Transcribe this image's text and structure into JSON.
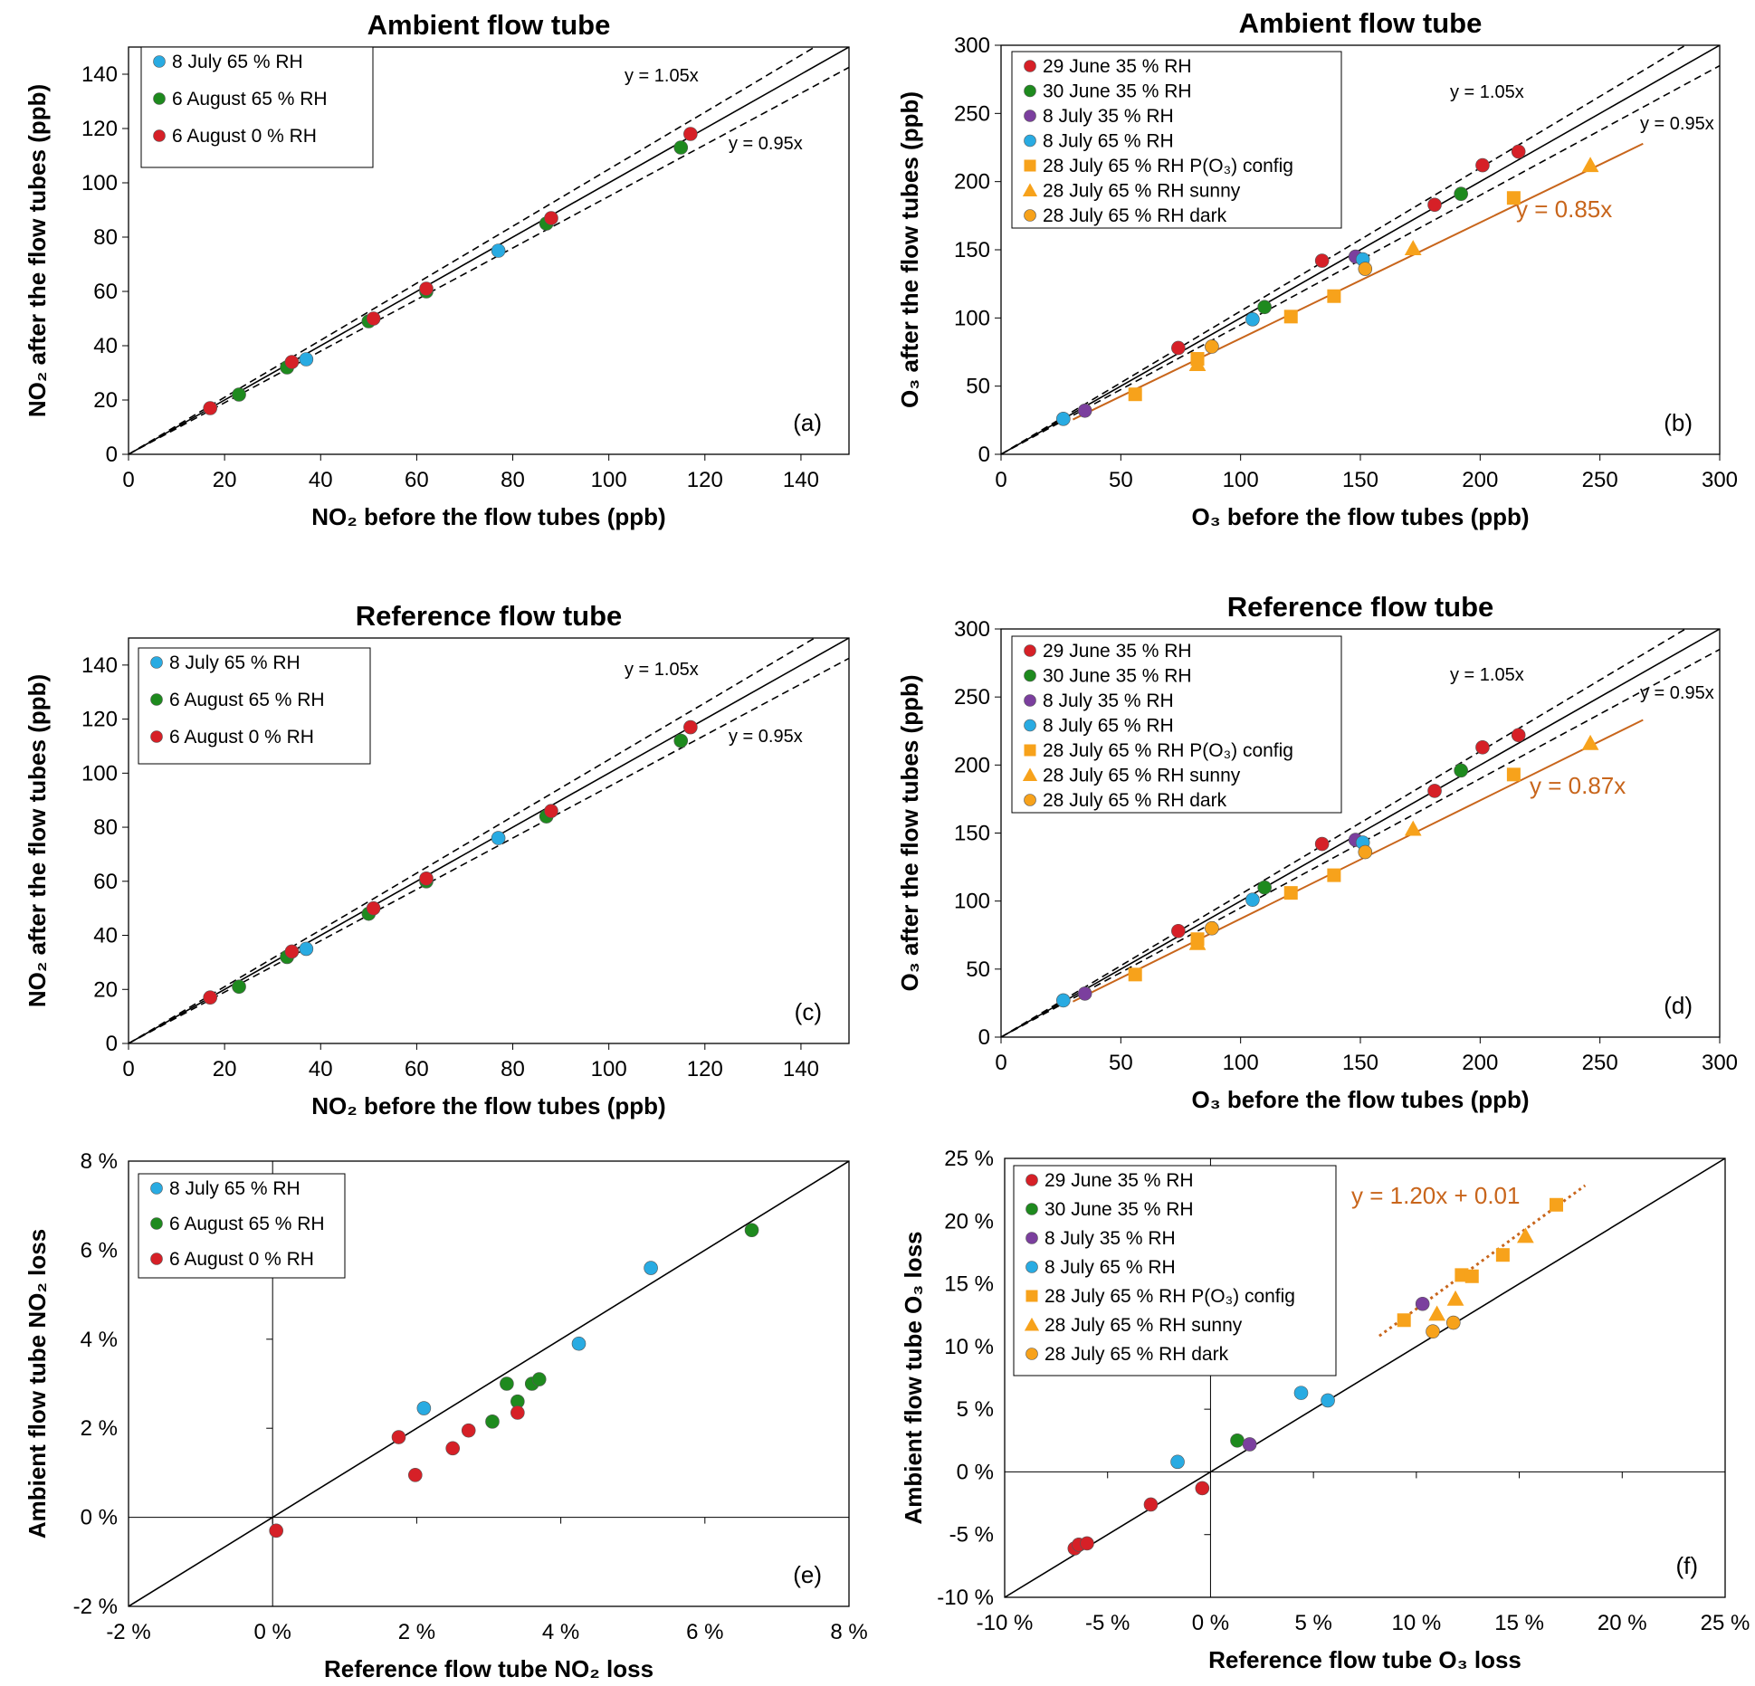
{
  "figure": {
    "panels": [
      "a",
      "b",
      "c",
      "d",
      "e",
      "f"
    ]
  },
  "chart_data": [
    {
      "id": "a",
      "type": "scatter",
      "title": "Ambient flow tube",
      "xlabel": "NO₂ before the flow tubes (ppb)",
      "ylabel": "NO₂ after the flow tubes (ppb)",
      "xlim": [
        0,
        150
      ],
      "ylim": [
        0,
        150
      ],
      "xticks": [
        0,
        20,
        40,
        60,
        80,
        100,
        120,
        140
      ],
      "yticks": [
        0,
        20,
        40,
        60,
        80,
        100,
        120,
        140
      ],
      "tick_format": "num",
      "panel_label": "(a)",
      "legend_position": "top-left",
      "lines": [
        {
          "kind": "ref",
          "slope": 1.0,
          "style": "solid",
          "color": "#000000"
        },
        {
          "kind": "ref",
          "slope": 1.05,
          "style": "dashed",
          "color": "#000000",
          "label": "y = 1.05x"
        },
        {
          "kind": "ref",
          "slope": 0.95,
          "style": "dashed",
          "color": "#000000",
          "label": "y = 0.95x"
        }
      ],
      "series": [
        {
          "name": "8 July 65 % RH",
          "color": "#29abe2",
          "marker": "circle",
          "points": [
            [
              37,
              35
            ],
            [
              77,
              75
            ]
          ]
        },
        {
          "name": "6 August 65 % RH",
          "color": "#1e8a1e",
          "marker": "circle",
          "points": [
            [
              23,
              22
            ],
            [
              33,
              32
            ],
            [
              50,
              49
            ],
            [
              62,
              60
            ],
            [
              87,
              85
            ],
            [
              115,
              113
            ]
          ]
        },
        {
          "name": "6 August 0 % RH",
          "color": "#d62027",
          "marker": "circle",
          "points": [
            [
              17,
              17
            ],
            [
              34,
              34
            ],
            [
              51,
              50
            ],
            [
              62,
              61
            ],
            [
              88,
              87
            ],
            [
              117,
              118
            ]
          ]
        }
      ]
    },
    {
      "id": "b",
      "type": "scatter",
      "title": "Ambient flow tube",
      "xlabel": "O₃ before the flow tubes (ppb)",
      "ylabel": "O₃ after the flow tubes (ppb)",
      "xlim": [
        0,
        300
      ],
      "ylim": [
        0,
        300
      ],
      "xticks": [
        0,
        50,
        100,
        150,
        200,
        250,
        300
      ],
      "yticks": [
        0,
        50,
        100,
        150,
        200,
        250,
        300
      ],
      "tick_format": "num",
      "panel_label": "(b)",
      "legend_position": "top-left",
      "lines": [
        {
          "kind": "ref",
          "slope": 1.0,
          "style": "solid",
          "color": "#000000"
        },
        {
          "kind": "ref",
          "slope": 1.05,
          "style": "dashed",
          "color": "#000000",
          "label": "y = 1.05x"
        },
        {
          "kind": "ref",
          "slope": 0.95,
          "style": "dashed",
          "color": "#000000",
          "label": "y = 0.95x"
        },
        {
          "kind": "fit",
          "slope": 0.85,
          "intercept": 0,
          "x_range": [
            30,
            268
          ],
          "style": "solid",
          "color": "#c8651b",
          "label": "y = 0.85x"
        }
      ],
      "series": [
        {
          "name": "29 June 35 % RH",
          "color": "#d62027",
          "marker": "circle",
          "points": [
            [
              74,
              78
            ],
            [
              134,
              142
            ],
            [
              181,
              183
            ],
            [
              201,
              212
            ],
            [
              216,
              222
            ]
          ]
        },
        {
          "name": "30 June 35 % RH",
          "color": "#1e8a1e",
          "marker": "circle",
          "points": [
            [
              110,
              108
            ],
            [
              192,
              191
            ]
          ]
        },
        {
          "name": "8 July 35 % RH",
          "color": "#7b3f9e",
          "marker": "circle",
          "points": [
            [
              35,
              32
            ],
            [
              148,
              145
            ]
          ]
        },
        {
          "name": "8 July 65 % RH",
          "color": "#29abe2",
          "marker": "circle",
          "points": [
            [
              26,
              26
            ],
            [
              105,
              99
            ],
            [
              151,
              143
            ]
          ]
        },
        {
          "name": "28 July 65 % RH P(O₃) config",
          "color": "#f7a21b",
          "marker": "square",
          "points": [
            [
              56,
              44
            ],
            [
              82,
              70
            ],
            [
              121,
              101
            ],
            [
              139,
              116
            ],
            [
              214,
              188
            ]
          ]
        },
        {
          "name": "28 July 65 % RH sunny",
          "color": "#f7a21b",
          "marker": "triangle",
          "points": [
            [
              82,
              66
            ],
            [
              172,
              151
            ],
            [
              246,
              212
            ]
          ]
        },
        {
          "name": "28 July 65 % RH dark",
          "color": "#f7a21b",
          "marker": "circle",
          "points": [
            [
              88,
              79
            ],
            [
              152,
              136
            ]
          ]
        }
      ]
    },
    {
      "id": "c",
      "type": "scatter",
      "title": "Reference flow tube",
      "xlabel": "NO₂ before the flow tubes (ppb)",
      "ylabel": "NO₂ after the flow tubes (ppb)",
      "xlim": [
        0,
        150
      ],
      "ylim": [
        0,
        150
      ],
      "xticks": [
        0,
        20,
        40,
        60,
        80,
        100,
        120,
        140
      ],
      "yticks": [
        0,
        20,
        40,
        60,
        80,
        100,
        120,
        140
      ],
      "tick_format": "num",
      "panel_label": "(c)",
      "legend_position": "top-left",
      "lines": [
        {
          "kind": "ref",
          "slope": 1.0,
          "style": "solid",
          "color": "#000000"
        },
        {
          "kind": "ref",
          "slope": 1.05,
          "style": "dashed",
          "color": "#000000",
          "label": "y = 1.05x"
        },
        {
          "kind": "ref",
          "slope": 0.95,
          "style": "dashed",
          "color": "#000000",
          "label": "y = 0.95x"
        }
      ],
      "series": [
        {
          "name": "8 July 65 % RH",
          "color": "#29abe2",
          "marker": "circle",
          "points": [
            [
              37,
              35
            ],
            [
              77,
              76
            ]
          ]
        },
        {
          "name": "6 August 65 % RH",
          "color": "#1e8a1e",
          "marker": "circle",
          "points": [
            [
              23,
              21
            ],
            [
              33,
              32
            ],
            [
              50,
              48
            ],
            [
              62,
              60
            ],
            [
              87,
              84
            ],
            [
              115,
              112
            ]
          ]
        },
        {
          "name": "6 August 0 % RH",
          "color": "#d62027",
          "marker": "circle",
          "points": [
            [
              17,
              17
            ],
            [
              34,
              34
            ],
            [
              51,
              50
            ],
            [
              62,
              61
            ],
            [
              88,
              86
            ],
            [
              117,
              117
            ]
          ]
        }
      ]
    },
    {
      "id": "d",
      "type": "scatter",
      "title": "Reference flow tube",
      "xlabel": "O₃ before the flow tubes (ppb)",
      "ylabel": "O₃ after the flow tubes (ppb)",
      "xlim": [
        0,
        300
      ],
      "ylim": [
        0,
        300
      ],
      "xticks": [
        0,
        50,
        100,
        150,
        200,
        250,
        300
      ],
      "yticks": [
        0,
        50,
        100,
        150,
        200,
        250,
        300
      ],
      "tick_format": "num",
      "panel_label": "(d)",
      "legend_position": "top-left",
      "lines": [
        {
          "kind": "ref",
          "slope": 1.0,
          "style": "solid",
          "color": "#000000"
        },
        {
          "kind": "ref",
          "slope": 1.05,
          "style": "dashed",
          "color": "#000000",
          "label": "y = 1.05x"
        },
        {
          "kind": "ref",
          "slope": 0.95,
          "style": "dashed",
          "color": "#000000",
          "label": "y = 0.95x"
        },
        {
          "kind": "fit",
          "slope": 0.87,
          "intercept": 0,
          "x_range": [
            30,
            268
          ],
          "style": "solid",
          "color": "#c8651b",
          "label": "y = 0.87x"
        }
      ],
      "series": [
        {
          "name": "29 June 35 % RH",
          "color": "#d62027",
          "marker": "circle",
          "points": [
            [
              74,
              78
            ],
            [
              134,
              142
            ],
            [
              181,
              181
            ],
            [
              201,
              213
            ],
            [
              216,
              222
            ]
          ]
        },
        {
          "name": "30 June 35 % RH",
          "color": "#1e8a1e",
          "marker": "circle",
          "points": [
            [
              110,
              110
            ],
            [
              192,
              196
            ]
          ]
        },
        {
          "name": "8 July 35 % RH",
          "color": "#7b3f9e",
          "marker": "circle",
          "points": [
            [
              35,
              32
            ],
            [
              148,
              145
            ]
          ]
        },
        {
          "name": "8 July 65 % RH",
          "color": "#29abe2",
          "marker": "circle",
          "points": [
            [
              26,
              27
            ],
            [
              105,
              101
            ],
            [
              151,
              143
            ]
          ]
        },
        {
          "name": "28 July 65 % RH P(O₃) config",
          "color": "#f7a21b",
          "marker": "square",
          "points": [
            [
              56,
              46
            ],
            [
              82,
              72
            ],
            [
              121,
              106
            ],
            [
              139,
              119
            ],
            [
              214,
              193
            ]
          ]
        },
        {
          "name": "28 July 65 % RH sunny",
          "color": "#f7a21b",
          "marker": "triangle",
          "points": [
            [
              82,
              69
            ],
            [
              172,
              153
            ],
            [
              246,
              216
            ]
          ]
        },
        {
          "name": "28 July 65 % RH dark",
          "color": "#f7a21b",
          "marker": "circle",
          "points": [
            [
              88,
              80
            ],
            [
              152,
              136
            ]
          ]
        }
      ]
    },
    {
      "id": "e",
      "type": "scatter",
      "title": "",
      "xlabel": "Reference flow tube NO₂ loss",
      "ylabel": "Ambient flow tube NO₂ loss",
      "xlim": [
        -2,
        8
      ],
      "ylim": [
        -2,
        8
      ],
      "xticks": [
        -2,
        0,
        2,
        4,
        6,
        8
      ],
      "yticks": [
        -2,
        0,
        2,
        4,
        6,
        8
      ],
      "tick_format": "pct",
      "panel_label": "(e)",
      "legend_position": "top-left",
      "zero_axes": true,
      "lines": [
        {
          "kind": "ref",
          "slope": 1.0,
          "style": "solid",
          "color": "#000000"
        }
      ],
      "series": [
        {
          "name": "8 July 65 % RH",
          "color": "#29abe2",
          "marker": "circle",
          "points": [
            [
              2.1,
              2.45
            ],
            [
              4.25,
              3.9
            ],
            [
              5.25,
              5.6
            ]
          ]
        },
        {
          "name": "6 August 65 % RH",
          "color": "#1e8a1e",
          "marker": "circle",
          "points": [
            [
              3.05,
              2.15
            ],
            [
              3.25,
              3.0
            ],
            [
              3.4,
              2.6
            ],
            [
              3.6,
              3.0
            ],
            [
              3.7,
              3.1
            ],
            [
              6.65,
              6.45
            ]
          ]
        },
        {
          "name": "6 August 0 % RH",
          "color": "#d62027",
          "marker": "circle",
          "points": [
            [
              0.05,
              -0.3
            ],
            [
              1.75,
              1.8
            ],
            [
              1.98,
              0.95
            ],
            [
              2.5,
              1.55
            ],
            [
              2.72,
              1.95
            ],
            [
              3.4,
              2.35
            ]
          ]
        }
      ]
    },
    {
      "id": "f",
      "type": "scatter",
      "title": "",
      "xlabel": "Reference flow tube O₃ loss",
      "ylabel": "Ambient flow tube O₃ loss",
      "xlim": [
        -10,
        25
      ],
      "ylim": [
        -10,
        25
      ],
      "xticks": [
        -10,
        -5,
        0,
        5,
        10,
        15,
        20,
        25
      ],
      "yticks": [
        -10,
        -5,
        0,
        5,
        10,
        15,
        20,
        25
      ],
      "tick_format": "pct",
      "panel_label": "(f)",
      "legend_position": "top-left",
      "zero_axes": true,
      "lines": [
        {
          "kind": "ref",
          "slope": 1.0,
          "style": "solid",
          "color": "#000000"
        },
        {
          "kind": "fit",
          "slope": 1.2,
          "intercept": 1.0,
          "x_range": [
            8.2,
            18.2
          ],
          "style": "dotted",
          "color": "#c8651b",
          "label": "y = 1.20x + 0.01"
        }
      ],
      "series": [
        {
          "name": "29 June 35 % RH",
          "color": "#d62027",
          "marker": "circle",
          "points": [
            [
              -6.6,
              -6.1
            ],
            [
              -6.4,
              -5.8
            ],
            [
              -6.0,
              -5.7
            ],
            [
              -2.9,
              -2.6
            ],
            [
              -0.4,
              -1.3
            ]
          ]
        },
        {
          "name": "30 June 35 % RH",
          "color": "#1e8a1e",
          "marker": "circle",
          "points": [
            [
              1.3,
              2.5
            ]
          ]
        },
        {
          "name": "8 July 35 % RH",
          "color": "#7b3f9e",
          "marker": "circle",
          "points": [
            [
              1.9,
              2.2
            ],
            [
              10.3,
              13.4
            ]
          ]
        },
        {
          "name": "8 July 65 % RH",
          "color": "#29abe2",
          "marker": "circle",
          "points": [
            [
              -1.6,
              0.8
            ],
            [
              4.4,
              6.3
            ],
            [
              5.7,
              5.7
            ]
          ]
        },
        {
          "name": "28 July 65 % RH P(O₃) config",
          "color": "#f7a21b",
          "marker": "square",
          "points": [
            [
              9.4,
              12.1
            ],
            [
              12.2,
              15.7
            ],
            [
              12.7,
              15.6
            ],
            [
              14.2,
              17.3
            ],
            [
              16.8,
              21.3
            ]
          ]
        },
        {
          "name": "28 July 65 % RH sunny",
          "color": "#f7a21b",
          "marker": "triangle",
          "points": [
            [
              11.0,
              12.6
            ],
            [
              11.9,
              13.8
            ],
            [
              15.3,
              18.8
            ]
          ]
        },
        {
          "name": "28 July 65 % RH dark",
          "color": "#f7a21b",
          "marker": "circle",
          "points": [
            [
              10.8,
              11.2
            ],
            [
              11.8,
              11.9
            ]
          ]
        }
      ]
    }
  ]
}
